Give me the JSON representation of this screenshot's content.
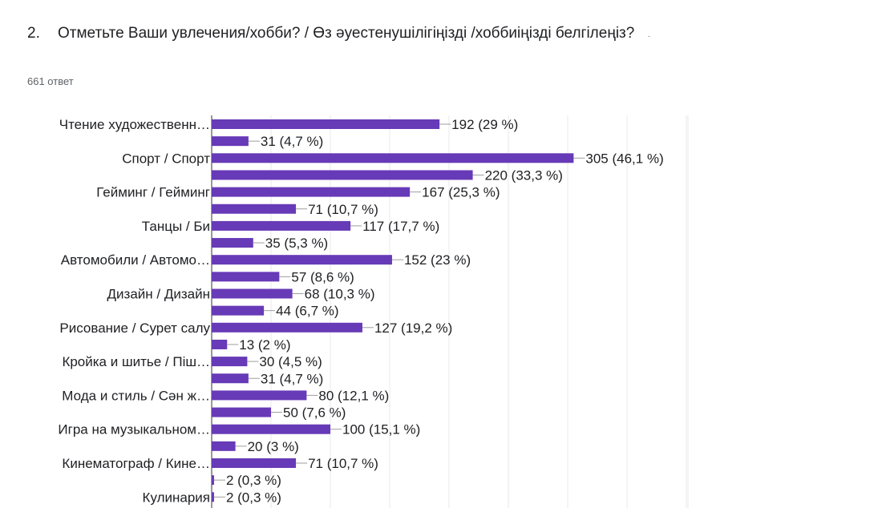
{
  "question": {
    "number": "2.",
    "text": "Отметьте Ваши увлечения/хобби? / Өз әуестенушілігіңізді /хоббиіңізді белгілеңіз?",
    "dot": "."
  },
  "responses": {
    "label": "661 ответ"
  },
  "chart_data": {
    "type": "bar",
    "orientation": "horizontal",
    "grid": true,
    "color": "#673ab7",
    "xlim": [
      0,
      360
    ],
    "total": 661,
    "bars": [
      {
        "category": "Чтение художественн…",
        "value": 192,
        "label": "192 (29 %)"
      },
      {
        "category": "",
        "value": 31,
        "label": "31 (4,7 %)"
      },
      {
        "category": "Спорт / Спорт",
        "value": 305,
        "label": "305 (46,1 %)"
      },
      {
        "category": "",
        "value": 220,
        "label": "220 (33,3 %)"
      },
      {
        "category": "Гейминг / Гейминг",
        "value": 167,
        "label": "167 (25,3 %)"
      },
      {
        "category": "",
        "value": 71,
        "label": "71 (10,7 %)"
      },
      {
        "category": "Танцы / Би",
        "value": 117,
        "label": "117 (17,7 %)"
      },
      {
        "category": "",
        "value": 35,
        "label": "35 (5,3 %)"
      },
      {
        "category": "Автомобили / Автомо…",
        "value": 152,
        "label": "152 (23 %)"
      },
      {
        "category": "",
        "value": 57,
        "label": "57 (8,6 %)"
      },
      {
        "category": "Дизайн / Дизайн",
        "value": 68,
        "label": "68 (10,3 %)"
      },
      {
        "category": "",
        "value": 44,
        "label": "44 (6,7 %)"
      },
      {
        "category": "Рисование / Сурет салу",
        "value": 127,
        "label": "127 (19,2 %)"
      },
      {
        "category": "",
        "value": 13,
        "label": "13 (2 %)"
      },
      {
        "category": "Кройка и шитье / Піш…",
        "value": 30,
        "label": "30 (4,5 %)"
      },
      {
        "category": "",
        "value": 31,
        "label": "31 (4,7 %)"
      },
      {
        "category": "Мода и стиль / Сән ж…",
        "value": 80,
        "label": "80 (12,1 %)"
      },
      {
        "category": "",
        "value": 50,
        "label": "50 (7,6 %)"
      },
      {
        "category": "Игра на музыкальном…",
        "value": 100,
        "label": "100 (15,1 %)"
      },
      {
        "category": "",
        "value": 20,
        "label": "20 (3 %)"
      },
      {
        "category": "Кинематограф / Кине…",
        "value": 71,
        "label": "71 (10,7 %)"
      },
      {
        "category": "",
        "value": 2,
        "label": "2 (0,3 %)"
      },
      {
        "category": "Кулинария",
        "value": 2,
        "label": "2 (0,3 %)"
      }
    ]
  }
}
